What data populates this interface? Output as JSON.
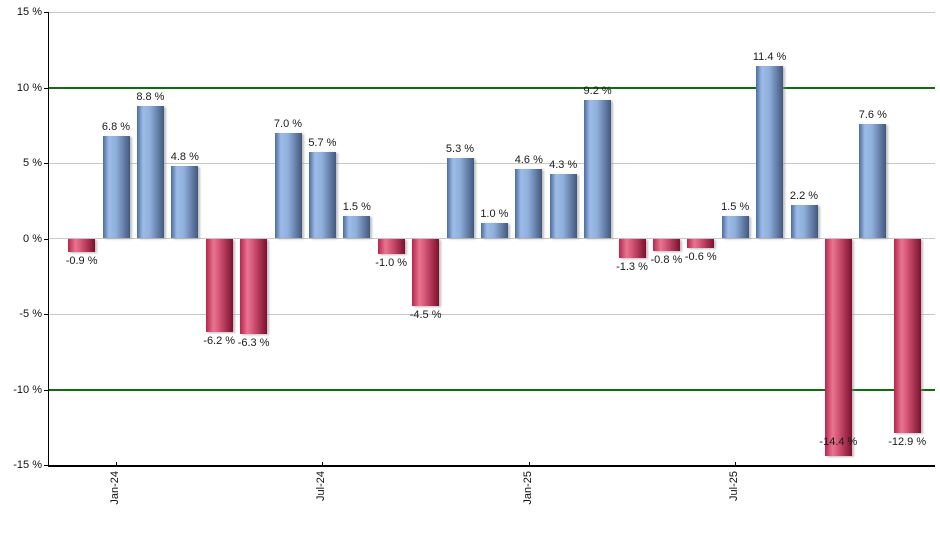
{
  "chart_data": {
    "type": "bar",
    "title": "",
    "unit": "%",
    "values": [
      -0.9,
      6.8,
      8.8,
      4.8,
      -6.2,
      -6.3,
      7.0,
      5.7,
      1.5,
      -1.0,
      -4.5,
      5.3,
      1.0,
      4.6,
      4.3,
      9.2,
      -1.3,
      -0.8,
      -0.6,
      1.5,
      11.4,
      2.2,
      -14.4,
      7.6,
      -12.9
    ],
    "bar_labels": [
      "-0.9 %",
      "6.8 %",
      "8.8 %",
      "4.8 %",
      "-6.2 %",
      "-6.3 %",
      "7.0 %",
      "5.7 %",
      "1.5 %",
      "-1.0 %",
      "-4.5 %",
      "5.3 %",
      "1.0 %",
      "4.6 %",
      "4.3 %",
      "9.2 %",
      "-1.3 %",
      "-0.8 %",
      "-0.6 %",
      "1.5 %",
      "11.4 %",
      "2.2 %",
      "-14.4 %",
      "7.6 %",
      "-12.9 %"
    ],
    "x_ticks": [
      {
        "label": "Jan-24",
        "index": 1
      },
      {
        "label": "Jul-24",
        "index": 7
      },
      {
        "label": "Jan-25",
        "index": 13
      },
      {
        "label": "Jul-25",
        "index": 19
      }
    ],
    "y_ticks": [
      {
        "label": "15 %",
        "value": 15
      },
      {
        "label": "10 %",
        "value": 10
      },
      {
        "label": "5 %",
        "value": 5
      },
      {
        "label": "0 %",
        "value": 0
      },
      {
        "label": "-5 %",
        "value": -5
      },
      {
        "label": "-10 %",
        "value": -10
      },
      {
        "label": "-15 %",
        "value": -15
      }
    ],
    "ylim": [
      -15,
      15
    ],
    "grid": true,
    "green_gridlines_at": [
      10,
      -10
    ],
    "colors": {
      "positive_gradient": [
        [
          "#4a6d9e",
          "0%"
        ],
        [
          "#9dbbe6",
          "22%"
        ],
        [
          "#8fb0dd",
          "48%"
        ],
        [
          "#43587d",
          "100%"
        ]
      ],
      "negative_gradient": [
        [
          "#b8254d",
          "0%"
        ],
        [
          "#e8768f",
          "28%"
        ],
        [
          "#d65677",
          "48%"
        ],
        [
          "#7d0f2e",
          "100%"
        ]
      ],
      "grid_gray": "#c8c8c8",
      "grid_green": "#0e6e0e",
      "axis": "#000000",
      "label_text": "#1a1a1a"
    },
    "legend": null
  }
}
